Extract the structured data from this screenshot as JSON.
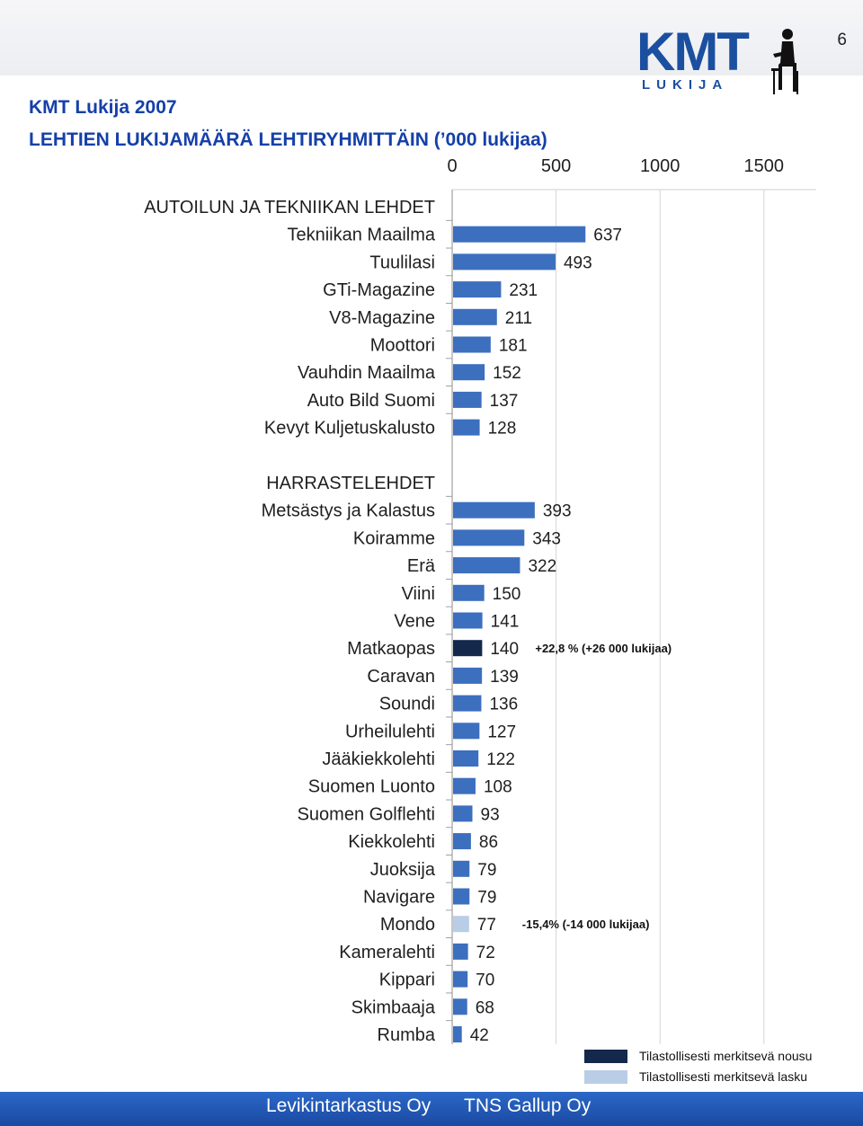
{
  "page_number": "6",
  "logo": {
    "text": "KMT",
    "subtext": "LUKIJA"
  },
  "header": {
    "title": "KMT Lukija 2007",
    "subtitle": "LEHTIEN LUKIJAMÄÄRÄ LEHTIRYHMITTÄIN (’000 lukijaa)"
  },
  "colors": {
    "bar": "#3d6fbf",
    "increase": "#13284a",
    "decrease": "#b9cde6",
    "label": "#1f1f1f",
    "brand": "#1b4fa0"
  },
  "chart_data": {
    "type": "bar",
    "orientation": "horizontal",
    "x_ticks": [
      "0",
      "500",
      "1000",
      "1500"
    ],
    "xlim": [
      0,
      1750
    ],
    "groups": [
      {
        "name": "AUTOILUN JA TEKNIIKAN LEHDET",
        "categories": [
          "Tekniikan Maailma",
          "Tuulilasi",
          "GTi-Magazine",
          "V8-Magazine",
          "Moottori",
          "Vauhdin Maailma",
          "Auto Bild Suomi",
          "Kevyt Kuljetuskalusto"
        ],
        "values": [
          637,
          493,
          231,
          211,
          181,
          152,
          137,
          128
        ],
        "status": [
          "",
          "",
          "",
          "",
          "",
          "",
          "",
          ""
        ],
        "notes": [
          "",
          "",
          "",
          "",
          "",
          "",
          "",
          ""
        ]
      },
      {
        "name": "HARRASTELEHDET",
        "categories": [
          "Metsästys ja Kalastus",
          "Koiramme",
          "Erä",
          "Viini",
          "Vene",
          "Matkaopas",
          "Caravan",
          "Soundi",
          "Urheilulehti",
          "Jääkiekkolehti",
          "Suomen Luonto",
          "Suomen Golflehti",
          "Kiekkolehti",
          "Juoksija",
          "Navigare",
          "Mondo",
          "Kameralehti",
          "Kippari",
          "Skimbaaja",
          "Rumba"
        ],
        "values": [
          393,
          343,
          322,
          150,
          141,
          140,
          139,
          136,
          127,
          122,
          108,
          93,
          86,
          79,
          79,
          77,
          72,
          70,
          68,
          42
        ],
        "status": [
          "",
          "",
          "",
          "",
          "",
          "increase",
          "",
          "",
          "",
          "",
          "",
          "",
          "",
          "",
          "",
          "decrease",
          "",
          "",
          "",
          ""
        ],
        "notes": [
          "",
          "",
          "",
          "",
          "",
          "+22,8 % (+26 000 lukijaa)",
          "",
          "",
          "",
          "",
          "",
          "",
          "",
          "",
          "",
          "-15,4% (-14 000 lukijaa)",
          "",
          "",
          "",
          ""
        ]
      }
    ],
    "legend": [
      {
        "label": "Tilastollisesti merkitsevä nousu",
        "color": "#13284a"
      },
      {
        "label": "Tilastollisesti merkitsevä lasku",
        "color": "#b9cde6"
      }
    ]
  },
  "footer": {
    "left": "Levikintarkastus Oy",
    "right": "TNS Gallup Oy"
  }
}
